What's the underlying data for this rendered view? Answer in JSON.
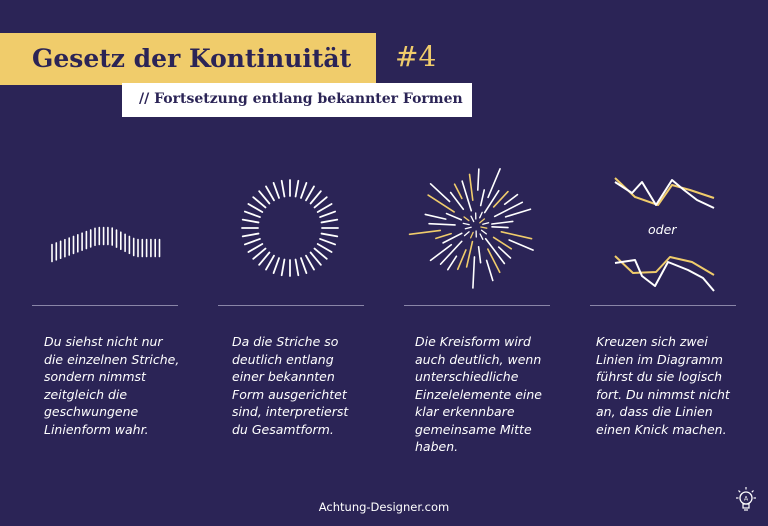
{
  "header": {
    "title": "Gesetz der Kontinuität",
    "number": "#4",
    "subtitle": "// Fortsetzung entlang bekannter Formen"
  },
  "colors": {
    "background": "#2b2456",
    "accent_yellow": "#f0cc6b",
    "white": "#ffffff"
  },
  "panels": [
    {
      "illustration": "wave-dashes",
      "lines": [
        "Du siehst nicht nur",
        "die einzelnen Striche,",
        "sondern nimmst",
        "zeitgleich die",
        "geschwungene",
        "Linienform wahr."
      ]
    },
    {
      "illustration": "circle-of-dashes",
      "lines": [
        "Da die Striche so",
        "deutlich entlang",
        "einer bekannten",
        "Form ausgerichtet",
        "sind, interpretierst",
        "du Gesamtform."
      ]
    },
    {
      "illustration": "starburst",
      "lines": [
        "Die Kreisform wird",
        "auch deutlich, wenn",
        "unterschiedliche",
        "Einzelelemente eine",
        "klar erkennbare",
        "gemeinsame Mitte",
        "haben."
      ]
    },
    {
      "illustration": "crossing-line-charts",
      "alt_label": "oder",
      "lines": [
        "Kreuzen sich zwei",
        "Linien im Diagramm",
        "führst du sie logisch",
        "fort. Du nimmst nicht",
        "an, dass die Linien",
        "einen Knick machen."
      ]
    }
  ],
  "footer": {
    "site": "Achtung-Designer.com",
    "logo_icon": "lightbulb-icon"
  }
}
